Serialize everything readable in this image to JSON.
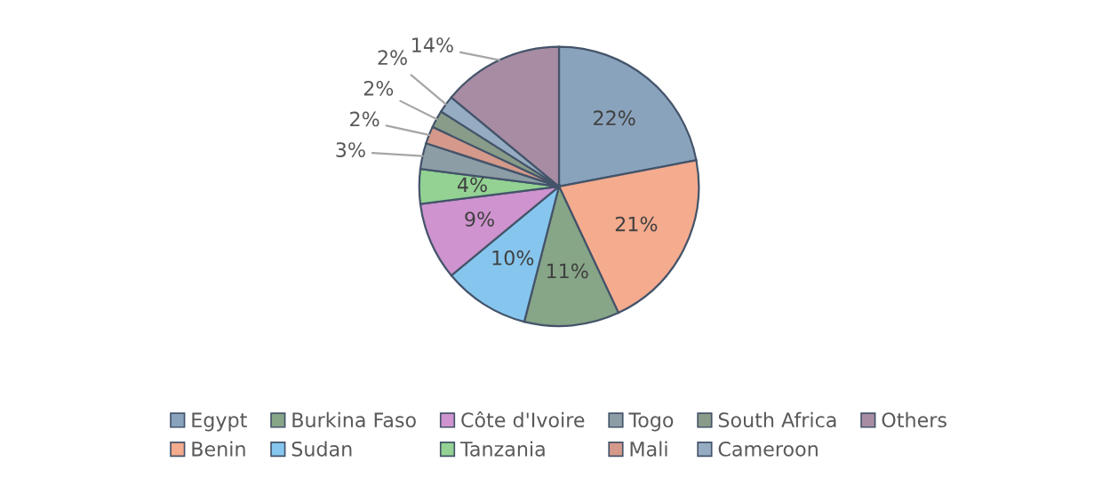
{
  "chart_data": {
    "type": "pie",
    "categories": [
      "Egypt",
      "Benin",
      "Burkina Faso",
      "Sudan",
      "Côte d'Ivoire",
      "Tanzania",
      "Togo",
      "Mali",
      "South Africa",
      "Cameroon",
      "Others"
    ],
    "values": [
      22,
      21,
      11,
      10,
      9,
      4,
      3,
      2,
      2,
      2,
      14
    ],
    "colors": [
      "#8aa3bd",
      "#f4ab8e",
      "#87a587",
      "#86c6ee",
      "#cf93cf",
      "#93d293",
      "#8c9da6",
      "#d4998a",
      "#899c89",
      "#95acc3",
      "#a88ca3"
    ],
    "value_labels": [
      "22%",
      "21%",
      "11%",
      "10%",
      "9%",
      "4%",
      "3%",
      "2%",
      "2%",
      "2%",
      "14%"
    ],
    "legend": "bottom"
  }
}
